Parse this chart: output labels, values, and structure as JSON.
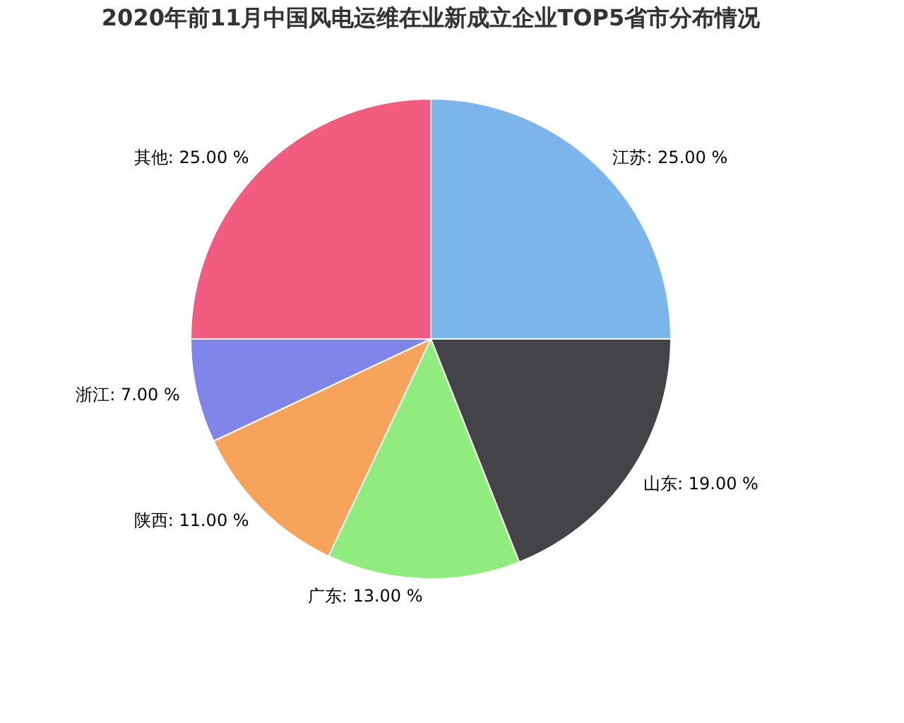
{
  "chart_data": {
    "type": "pie",
    "title": "2020年前11月中国风电运维在业新成立企业TOP5省市分布情况",
    "categories": [
      "江苏",
      "山东",
      "广东",
      "陕西",
      "浙江",
      "其他"
    ],
    "values": [
      25,
      19,
      13,
      11,
      7,
      25
    ],
    "colors": [
      "#7cb5ec",
      "#434348",
      "#90ed7d",
      "#f7a35c",
      "#8085e9",
      "#f15c80"
    ],
    "value_labels": [
      "25.00 %",
      "19.00 %",
      "13.00 %",
      "11.00 %",
      "7.00 %",
      "25.00 %"
    ],
    "legend": false
  }
}
